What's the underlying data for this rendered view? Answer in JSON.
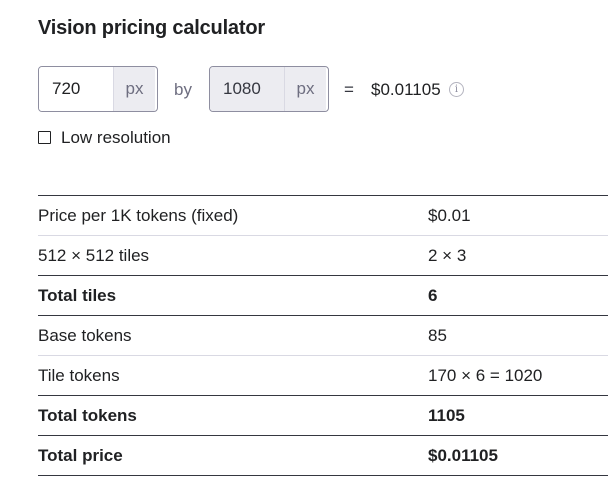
{
  "title": "Vision pricing calculator",
  "width_input": {
    "value": "720",
    "unit": "px"
  },
  "by_label": "by",
  "height_input": {
    "value": "1080",
    "unit": "px"
  },
  "equals": "=",
  "result": "$0.01105",
  "info_icon": "info-icon",
  "low_resolution": {
    "label": "Low resolution",
    "checked": false
  },
  "rows": [
    {
      "label": "Price per 1K tokens (fixed)",
      "value": "$0.01"
    },
    {
      "label": "512 × 512 tiles",
      "value": "2 × 3"
    },
    {
      "label": "Total tiles",
      "value": "6"
    },
    {
      "label": "Base tokens",
      "value": "85"
    },
    {
      "label": "Tile tokens",
      "value": "170 × 6 = 1020"
    },
    {
      "label": "Total tokens",
      "value": "1105"
    },
    {
      "label": "Total price",
      "value": "$0.01105"
    }
  ]
}
